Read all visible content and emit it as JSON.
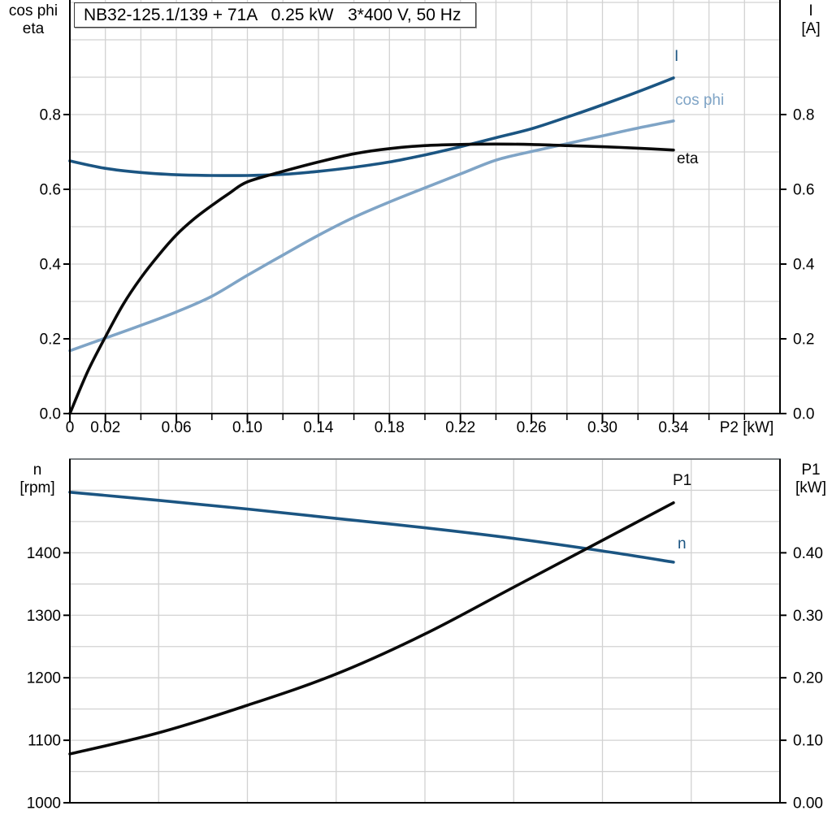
{
  "title_box": "NB32-125.1/139 + 71A   0.25 kW   3*400 V, 50 Hz",
  "colors": {
    "curve_dark_blue": "#1b5582",
    "curve_light_blue": "#7fa4c6",
    "curve_black": "#0a0a0a",
    "gridline": "#d2d2d2",
    "axis": "#000000",
    "chart_divider": "#7b8084"
  },
  "chart_data": [
    {
      "type": "line",
      "title": "NB32-125.1/139 + 71A   0.25 kW   3*400 V, 50 Hz",
      "x_axis": {
        "label": "P2 [kW]",
        "min": 0,
        "max": 0.4,
        "grid_step": 0.02,
        "tick_step": 0.02,
        "ticks": [
          {
            "v": 0,
            "label": "0"
          },
          {
            "v": 0.02,
            "label": "0.02"
          },
          {
            "v": 0.06,
            "label": "0.06"
          },
          {
            "v": 0.1,
            "label": "0.10"
          },
          {
            "v": 0.14,
            "label": "0.14"
          },
          {
            "v": 0.18,
            "label": "0.18"
          },
          {
            "v": 0.22,
            "label": "0.22"
          },
          {
            "v": 0.26,
            "label": "0.26"
          },
          {
            "v": 0.3,
            "label": "0.30"
          },
          {
            "v": 0.34,
            "label": "0.34"
          }
        ]
      },
      "y_left": {
        "label_lines": [
          "cos phi",
          "eta"
        ],
        "min": 0,
        "max": 1.1,
        "grid_step": 0.1,
        "ticks": [
          {
            "v": 0.0,
            "label": "0.0"
          },
          {
            "v": 0.2,
            "label": "0.2"
          },
          {
            "v": 0.4,
            "label": "0.4"
          },
          {
            "v": 0.6,
            "label": "0.6"
          },
          {
            "v": 0.8,
            "label": "0.8"
          }
        ]
      },
      "y_right": {
        "label_lines": [
          "I",
          "[A]"
        ],
        "min": 0,
        "max": 1.1,
        "grid_step": 0.1,
        "ticks": [
          {
            "v": 0.0,
            "label": "0.0"
          },
          {
            "v": 0.2,
            "label": "0.2"
          },
          {
            "v": 0.4,
            "label": "0.4"
          },
          {
            "v": 0.6,
            "label": "0.6"
          },
          {
            "v": 0.8,
            "label": "0.8"
          }
        ]
      },
      "grid": true,
      "series": [
        {
          "name": "I",
          "color": "#1b5582",
          "points": [
            [
              0,
              0.676
            ],
            [
              0.02,
              0.656
            ],
            [
              0.04,
              0.645
            ],
            [
              0.06,
              0.639
            ],
            [
              0.08,
              0.637
            ],
            [
              0.1,
              0.637
            ],
            [
              0.12,
              0.64
            ],
            [
              0.14,
              0.648
            ],
            [
              0.16,
              0.659
            ],
            [
              0.18,
              0.673
            ],
            [
              0.2,
              0.692
            ],
            [
              0.22,
              0.714
            ],
            [
              0.24,
              0.738
            ],
            [
              0.26,
              0.762
            ],
            [
              0.28,
              0.793
            ],
            [
              0.3,
              0.826
            ],
            [
              0.32,
              0.861
            ],
            [
              0.34,
              0.898
            ]
          ]
        },
        {
          "name": "cos phi",
          "color": "#7fa4c6",
          "points": [
            [
              0,
              0.168
            ],
            [
              0.02,
              0.202
            ],
            [
              0.04,
              0.236
            ],
            [
              0.06,
              0.272
            ],
            [
              0.08,
              0.314
            ],
            [
              0.1,
              0.37
            ],
            [
              0.12,
              0.424
            ],
            [
              0.14,
              0.477
            ],
            [
              0.16,
              0.525
            ],
            [
              0.18,
              0.566
            ],
            [
              0.2,
              0.604
            ],
            [
              0.22,
              0.641
            ],
            [
              0.24,
              0.678
            ],
            [
              0.26,
              0.701
            ],
            [
              0.28,
              0.722
            ],
            [
              0.3,
              0.743
            ],
            [
              0.32,
              0.764
            ],
            [
              0.34,
              0.783
            ]
          ]
        },
        {
          "name": "eta",
          "color": "#0a0a0a",
          "points": [
            [
              0,
              0.0
            ],
            [
              0.01,
              0.112
            ],
            [
              0.02,
              0.205
            ],
            [
              0.03,
              0.292
            ],
            [
              0.04,
              0.363
            ],
            [
              0.05,
              0.424
            ],
            [
              0.06,
              0.478
            ],
            [
              0.07,
              0.521
            ],
            [
              0.08,
              0.557
            ],
            [
              0.09,
              0.59
            ],
            [
              0.1,
              0.62
            ],
            [
              0.12,
              0.648
            ],
            [
              0.14,
              0.673
            ],
            [
              0.16,
              0.695
            ],
            [
              0.18,
              0.709
            ],
            [
              0.2,
              0.717
            ],
            [
              0.22,
              0.72
            ],
            [
              0.24,
              0.721
            ],
            [
              0.26,
              0.72
            ],
            [
              0.28,
              0.717
            ],
            [
              0.3,
              0.714
            ],
            [
              0.32,
              0.71
            ],
            [
              0.34,
              0.705
            ]
          ]
        }
      ]
    },
    {
      "type": "line",
      "x_axis": {
        "label": "",
        "min": 0,
        "max": 0.4,
        "grid_step": 0.05,
        "ticks": []
      },
      "y_left": {
        "label_lines": [
          "n",
          "[rpm]"
        ],
        "min": 1000,
        "max": 1550,
        "grid_step": 50,
        "ticks": [
          {
            "v": 1000,
            "label": "1000"
          },
          {
            "v": 1100,
            "label": "1100"
          },
          {
            "v": 1200,
            "label": "1200"
          },
          {
            "v": 1300,
            "label": "1300"
          },
          {
            "v": 1400,
            "label": "1400"
          }
        ]
      },
      "y_right": {
        "label_lines": [
          "P1",
          "[kW]"
        ],
        "min": 0,
        "max": 0.55,
        "grid_step": 0.05,
        "ticks": [
          {
            "v": 0.0,
            "label": "0.00"
          },
          {
            "v": 0.1,
            "label": "0.10"
          },
          {
            "v": 0.2,
            "label": "0.20"
          },
          {
            "v": 0.3,
            "label": "0.30"
          },
          {
            "v": 0.4,
            "label": "0.40"
          }
        ]
      },
      "grid": true,
      "series": [
        {
          "name": "P1",
          "color": "#0a0a0a",
          "axis": "right",
          "points": [
            [
              0,
              0.078
            ],
            [
              0.05,
              0.112
            ],
            [
              0.1,
              0.156
            ],
            [
              0.15,
              0.206
            ],
            [
              0.2,
              0.27
            ],
            [
              0.25,
              0.345
            ],
            [
              0.3,
              0.42
            ],
            [
              0.34,
              0.48
            ]
          ]
        },
        {
          "name": "n",
          "color": "#1b5582",
          "axis": "left",
          "points": [
            [
              0,
              1497
            ],
            [
              0.05,
              1484
            ],
            [
              0.1,
              1470
            ],
            [
              0.15,
              1455
            ],
            [
              0.2,
              1440
            ],
            [
              0.25,
              1423
            ],
            [
              0.3,
              1403
            ],
            [
              0.34,
              1385
            ]
          ]
        }
      ]
    }
  ]
}
